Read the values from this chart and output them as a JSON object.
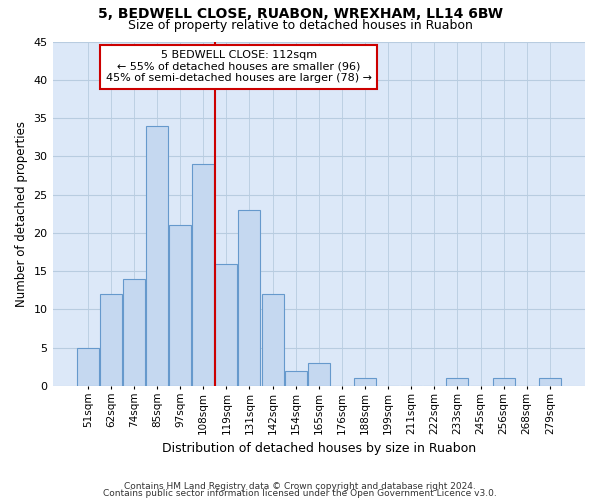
{
  "title1": "5, BEDWELL CLOSE, RUABON, WREXHAM, LL14 6BW",
  "title2": "Size of property relative to detached houses in Ruabon",
  "xlabel": "Distribution of detached houses by size in Ruabon",
  "ylabel": "Number of detached properties",
  "categories": [
    "51sqm",
    "62sqm",
    "74sqm",
    "85sqm",
    "97sqm",
    "108sqm",
    "119sqm",
    "131sqm",
    "142sqm",
    "154sqm",
    "165sqm",
    "176sqm",
    "188sqm",
    "199sqm",
    "211sqm",
    "222sqm",
    "233sqm",
    "245sqm",
    "256sqm",
    "268sqm",
    "279sqm"
  ],
  "values": [
    5,
    12,
    14,
    34,
    21,
    29,
    16,
    23,
    12,
    2,
    3,
    0,
    1,
    0,
    0,
    0,
    1,
    0,
    1,
    0,
    1
  ],
  "bar_color": "#c5d8f0",
  "bar_edge_color": "#6699cc",
  "vline_color": "#cc0000",
  "annotation_box_color": "#ffffff",
  "annotation_box_edge": "#cc0000",
  "property_label": "5 BEDWELL CLOSE: 112sqm",
  "annotation_line1": "← 55% of detached houses are smaller (96)",
  "annotation_line2": "45% of semi-detached houses are larger (78) →",
  "ylim": [
    0,
    45
  ],
  "yticks": [
    0,
    5,
    10,
    15,
    20,
    25,
    30,
    35,
    40,
    45
  ],
  "footer1": "Contains HM Land Registry data © Crown copyright and database right 2024.",
  "footer2": "Contains public sector information licensed under the Open Government Licence v3.0.",
  "bg_color": "#ffffff",
  "plot_bg_color": "#dce8f8",
  "grid_color": "#b8cce0",
  "vline_x_index": 5.5
}
